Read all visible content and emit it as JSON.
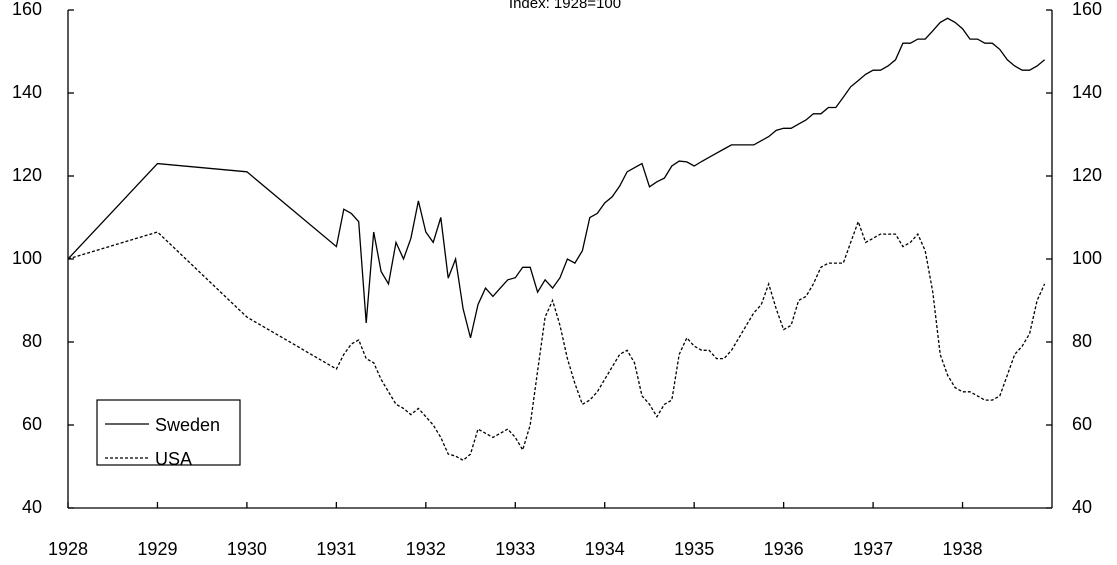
{
  "chart_data": {
    "type": "line",
    "title": "Index: 1928=100",
    "xlim": [
      1928,
      1939
    ],
    "xticks": [
      1928,
      1929,
      1930,
      1931,
      1932,
      1933,
      1934,
      1935,
      1936,
      1937,
      1938
    ],
    "ylim": [
      40,
      160
    ],
    "yticks": [
      40,
      60,
      80,
      100,
      120,
      140,
      160
    ],
    "legend": "lower left",
    "x": [
      1928,
      1929,
      1930,
      1931.0,
      1931.083,
      1931.167,
      1931.25,
      1931.333,
      1931.417,
      1931.5,
      1931.583,
      1931.667,
      1931.75,
      1931.833,
      1931.917,
      1932.0,
      1932.083,
      1932.167,
      1932.25,
      1932.333,
      1932.417,
      1932.5,
      1932.583,
      1932.667,
      1932.75,
      1932.833,
      1932.917,
      1933.0,
      1933.083,
      1933.167,
      1933.25,
      1933.333,
      1933.417,
      1933.5,
      1933.583,
      1933.667,
      1933.75,
      1933.833,
      1933.917,
      1934.0,
      1934.083,
      1934.167,
      1934.25,
      1934.333,
      1934.417,
      1934.5,
      1934.583,
      1934.667,
      1934.75,
      1934.833,
      1934.917,
      1935.0,
      1935.083,
      1935.167,
      1935.25,
      1935.333,
      1935.417,
      1935.5,
      1935.583,
      1935.667,
      1935.75,
      1935.833,
      1935.917,
      1936.0,
      1936.083,
      1936.167,
      1936.25,
      1936.333,
      1936.417,
      1936.5,
      1936.583,
      1936.667,
      1936.75,
      1936.833,
      1936.917,
      1937.0,
      1937.083,
      1937.167,
      1937.25,
      1937.333,
      1937.417,
      1937.5,
      1937.583,
      1937.667,
      1937.75,
      1937.833,
      1937.917,
      1938.0,
      1938.083,
      1938.167,
      1938.25,
      1938.333,
      1938.417,
      1938.5,
      1938.583,
      1938.667,
      1938.75,
      1938.833,
      1938.917
    ],
    "series": [
      {
        "name": "Sweden",
        "color": "#000000",
        "linestyle": "solid",
        "values": [
          100,
          123,
          121,
          103,
          112,
          111,
          109,
          84.6,
          106.5,
          97,
          94,
          104,
          100,
          105,
          114,
          106.5,
          104,
          110,
          95.4,
          100,
          88,
          81,
          89,
          93,
          91,
          93,
          95,
          95.5,
          98,
          98,
          92,
          95,
          93,
          95.5,
          100,
          99,
          102,
          110,
          111,
          113.5,
          115,
          117.6,
          121,
          122,
          123,
          117.4,
          118.6,
          119.5,
          122.4,
          123.6,
          123.4,
          122.4,
          123.5,
          124.5,
          125.5,
          126.5,
          127.5,
          127.5,
          127.5,
          127.5,
          128.5,
          129.5,
          131,
          131.5,
          131.5,
          132.5,
          133.5,
          135,
          135,
          136.5,
          136.5,
          139,
          141.5,
          143,
          144.5,
          145.5,
          145.5,
          146.5,
          148,
          152,
          152,
          153,
          153,
          155,
          157,
          158,
          157,
          155.5,
          153,
          153,
          152,
          152,
          150.5,
          148,
          146.5,
          145.5,
          145.5,
          146.5,
          148
        ]
      },
      {
        "name": "USA",
        "color": "#000000",
        "linestyle": "dashed",
        "values": [
          100,
          106.5,
          86,
          73.5,
          77,
          79.5,
          80.5,
          76,
          75,
          71,
          68,
          65,
          64,
          62.5,
          64,
          62,
          60,
          57,
          53,
          52.5,
          51.5,
          53,
          59,
          58,
          57,
          58,
          59,
          57,
          54,
          60,
          73,
          86,
          90,
          84,
          76,
          70,
          65,
          66,
          68,
          71,
          74,
          77,
          78,
          75,
          67,
          65,
          62,
          65,
          66,
          77,
          81,
          79,
          78,
          78,
          76,
          76,
          78,
          81,
          84,
          87,
          89,
          94,
          88,
          83,
          84,
          90,
          91,
          94,
          98,
          99,
          99,
          99,
          104,
          109,
          104,
          105,
          106,
          106,
          106,
          103,
          104,
          106,
          102,
          92,
          77,
          72,
          69,
          68,
          68,
          67,
          66,
          66,
          67,
          72,
          77,
          79,
          82,
          90,
          94
        ]
      }
    ]
  }
}
